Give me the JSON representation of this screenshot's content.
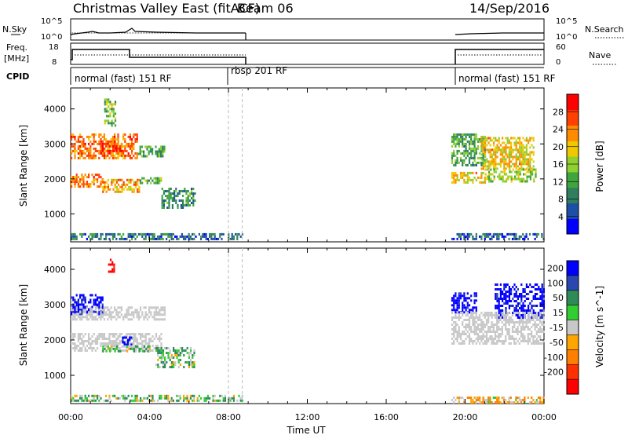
{
  "header": {
    "title": "Christmas Valley East (fitACF)",
    "beam": "Beam 06",
    "date": "14/Sep/2016"
  },
  "nsky_panel": {
    "left_label": "N.Sky",
    "right_label": "N.Search",
    "left_ticks": [
      "10^5",
      "10^0"
    ],
    "right_ticks": [
      "10^5",
      "10^0"
    ]
  },
  "freq_panel": {
    "left_label_1": "Freq.",
    "left_label_2": "[MHz]",
    "right_label": "Nave",
    "left_ticks": [
      "18",
      "8"
    ],
    "right_ticks": [
      "60",
      "0"
    ]
  },
  "cpid_panel": {
    "label": "CPID",
    "segments": [
      {
        "name": "normal (fast) 151 RF",
        "start_h": 0.0
      },
      {
        "name": "rbsp 201 RF",
        "start_h": 8.0
      },
      {
        "name": "normal (fast) 151 RF",
        "start_h": 19.33
      }
    ]
  },
  "colors": {
    "power": [
      "#0000ff",
      "#1e4fa6",
      "#2f7f5f",
      "#3fa63f",
      "#8fcf2f",
      "#f0c800",
      "#ff8c00",
      "#ff4000",
      "#ff0000"
    ],
    "velocity": [
      "#0000ff",
      "#2a47b0",
      "#2e8b57",
      "#32cd32",
      "#c8c8c8",
      "#ffa500",
      "#ff8000",
      "#ff3000",
      "#ff0000"
    ],
    "ground": "#c8c8c8"
  },
  "chart_data": [
    {
      "type": "heatmap",
      "name": "power",
      "ylabel": "Slant Range [km]",
      "ylim": [
        200,
        4600
      ],
      "yticks": [
        1000,
        2000,
        3000,
        4000
      ],
      "xlim": [
        0,
        24
      ],
      "colorbar": {
        "label": "Power [dB]",
        "ticks": [
          4,
          8,
          12,
          16,
          20,
          24,
          28
        ],
        "range": [
          0,
          32
        ]
      },
      "echo_regions": [
        {
          "t0": 0.0,
          "t1": 3.4,
          "r0": 2600,
          "r1": 3300,
          "level": 24
        },
        {
          "t0": 1.5,
          "t1": 2.6,
          "r0": 2700,
          "r1": 3100,
          "level": 28
        },
        {
          "t0": 3.4,
          "t1": 4.8,
          "r0": 2650,
          "r1": 2950,
          "level": 12
        },
        {
          "t0": 0.0,
          "t1": 1.6,
          "r0": 1750,
          "r1": 2150,
          "level": 24
        },
        {
          "t0": 1.6,
          "t1": 3.5,
          "r0": 1600,
          "r1": 2000,
          "level": 22
        },
        {
          "t0": 3.5,
          "t1": 4.6,
          "r0": 1850,
          "r1": 2050,
          "level": 14
        },
        {
          "t0": 4.6,
          "t1": 6.3,
          "r0": 1200,
          "r1": 1750,
          "level": 10
        },
        {
          "t0": 1.7,
          "t1": 2.3,
          "r0": 3500,
          "r1": 4300,
          "level": 14
        },
        {
          "t0": 19.3,
          "t1": 21.0,
          "r0": 2400,
          "r1": 3300,
          "level": 12
        },
        {
          "t0": 20.8,
          "t1": 23.5,
          "r0": 2300,
          "r1": 3200,
          "level": 20
        },
        {
          "t0": 19.3,
          "t1": 21.0,
          "r0": 1900,
          "r1": 2200,
          "level": 20
        },
        {
          "t0": 21.0,
          "t1": 23.6,
          "r0": 1900,
          "r1": 2300,
          "level": 16
        },
        {
          "t0": 0.0,
          "t1": 8.7,
          "r0": 250,
          "r1": 450,
          "level": 8
        },
        {
          "t0": 19.3,
          "t1": 24.0,
          "r0": 250,
          "r1": 450,
          "level": 6
        }
      ]
    },
    {
      "type": "heatmap",
      "name": "velocity",
      "ylabel": "Slant Range [km]",
      "xlabel": "Time UT",
      "ylim": [
        200,
        4600
      ],
      "yticks": [
        1000,
        2000,
        3000,
        4000
      ],
      "xlim": [
        0,
        24
      ],
      "xticks": [
        "00:00",
        "04:00",
        "08:00",
        "12:00",
        "16:00",
        "20:00",
        "00:00"
      ],
      "colorbar": {
        "label": "Velocity [m s^-1]",
        "ticks": [
          "200",
          "100",
          "50",
          "15",
          "-15",
          "-50",
          "-100",
          "-200"
        ]
      },
      "echo_regions": [
        {
          "t0": 0.0,
          "t1": 1.6,
          "r0": 2750,
          "r1": 3300,
          "velocity": 250
        },
        {
          "t0": 0.0,
          "t1": 4.8,
          "r0": 2550,
          "r1": 2950,
          "velocity": 0
        },
        {
          "t0": 0.0,
          "t1": 4.6,
          "r0": 1700,
          "r1": 2200,
          "velocity": 0
        },
        {
          "t0": 2.6,
          "t1": 3.1,
          "r0": 1850,
          "r1": 2100,
          "velocity": 250
        },
        {
          "t0": 1.6,
          "t1": 4.0,
          "r0": 1650,
          "r1": 1850,
          "velocity": 30
        },
        {
          "t0": 4.3,
          "t1": 6.3,
          "r0": 1250,
          "r1": 1800,
          "velocity": 30
        },
        {
          "t0": 1.9,
          "t1": 2.2,
          "r0": 3900,
          "r1": 4300,
          "velocity": -250
        },
        {
          "t0": 19.3,
          "t1": 20.6,
          "r0": 2800,
          "r1": 3350,
          "velocity": 250
        },
        {
          "t0": 21.5,
          "t1": 24.0,
          "r0": 2600,
          "r1": 3600,
          "velocity": 250
        },
        {
          "t0": 19.3,
          "t1": 24.0,
          "r0": 1900,
          "r1": 2800,
          "velocity": 0
        },
        {
          "t0": 0.0,
          "t1": 8.7,
          "r0": 250,
          "r1": 450,
          "velocity": 30
        },
        {
          "t0": 19.3,
          "t1": 24.0,
          "r0": 250,
          "r1": 400,
          "velocity": -40
        }
      ]
    }
  ]
}
